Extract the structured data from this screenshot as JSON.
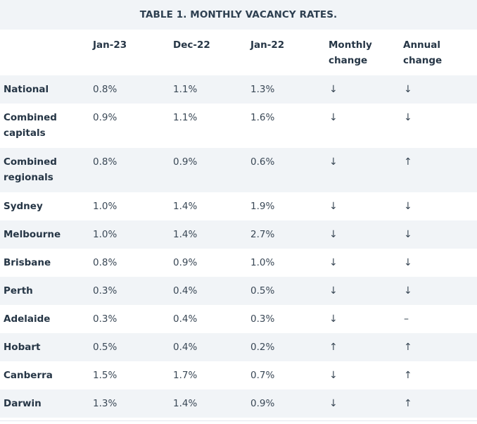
{
  "title": "TABLE 1. MONTHLY VACANCY RATES.",
  "headers": [
    "",
    "Jan-23",
    "Dec-22",
    "Jan-22",
    "Monthly change",
    "Annual change"
  ],
  "rows": [
    {
      "name": "National",
      "jan23": "0.8%",
      "dec22": "1.1%",
      "jan22": "1.3%",
      "monthly": "↓",
      "annual": "↓"
    },
    {
      "name": "Combined capitals",
      "jan23": "0.9%",
      "dec22": "1.1%",
      "jan22": "1.6%",
      "monthly": "↓",
      "annual": "↓"
    },
    {
      "name": "Combined regionals",
      "jan23": "0.8%",
      "dec22": "0.9%",
      "jan22": "0.6%",
      "monthly": "↓",
      "annual": "↑"
    },
    {
      "name": "Sydney",
      "jan23": "1.0%",
      "dec22": "1.4%",
      "jan22": "1.9%",
      "monthly": "↓",
      "annual": "↓"
    },
    {
      "name": "Melbourne",
      "jan23": "1.0%",
      "dec22": "1.4%",
      "jan22": "2.7%",
      "monthly": "↓",
      "annual": "↓"
    },
    {
      "name": "Brisbane",
      "jan23": "0.8%",
      "dec22": "0.9%",
      "jan22": "1.0%",
      "monthly": "↓",
      "annual": "↓"
    },
    {
      "name": "Perth",
      "jan23": "0.3%",
      "dec22": "0.4%",
      "jan22": "0.5%",
      "monthly": "↓",
      "annual": "↓"
    },
    {
      "name": "Adelaide",
      "jan23": "0.3%",
      "dec22": "0.4%",
      "jan22": "0.3%",
      "monthly": "↓",
      "annual": "–"
    },
    {
      "name": "Hobart",
      "jan23": "0.5%",
      "dec22": "0.4%",
      "jan22": "0.2%",
      "monthly": "↑",
      "annual": "↑"
    },
    {
      "name": "Canberra",
      "jan23": "1.5%",
      "dec22": "1.7%",
      "jan22": "0.7%",
      "monthly": "↓",
      "annual": "↑"
    },
    {
      "name": "Darwin",
      "jan23": "1.3%",
      "dec22": "1.4%",
      "jan22": "0.9%",
      "monthly": "↓",
      "annual": "↑"
    }
  ]
}
